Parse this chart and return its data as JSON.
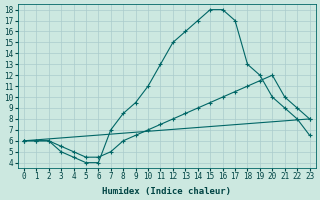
{
  "xlabel": "Humidex (Indice chaleur)",
  "background_color": "#cce8e0",
  "grid_color": "#aacccc",
  "line_color": "#006666",
  "xlim": [
    -0.5,
    23.5
  ],
  "ylim": [
    3.5,
    18.5
  ],
  "xticks": [
    0,
    1,
    2,
    3,
    4,
    5,
    6,
    7,
    8,
    9,
    10,
    11,
    12,
    13,
    14,
    15,
    16,
    17,
    18,
    19,
    20,
    21,
    22,
    23
  ],
  "yticks": [
    4,
    5,
    6,
    7,
    8,
    9,
    10,
    11,
    12,
    13,
    14,
    15,
    16,
    17,
    18
  ],
  "line1_x": [
    0,
    1,
    2,
    3,
    4,
    5,
    6,
    7,
    8,
    9,
    10,
    11,
    12,
    13,
    14,
    15,
    16,
    17,
    18,
    19,
    20,
    21,
    22,
    23
  ],
  "line1_y": [
    6,
    6,
    6,
    5,
    4.5,
    4,
    4,
    7,
    8.5,
    9.5,
    11,
    13,
    15,
    16,
    17,
    18,
    18,
    17,
    13,
    12,
    10,
    9,
    8,
    6.5
  ],
  "line2_x": [
    0,
    1,
    2,
    3,
    4,
    5,
    6,
    7,
    8,
    9,
    10,
    11,
    12,
    13,
    14,
    15,
    16,
    17,
    18,
    19,
    20,
    21,
    22,
    23
  ],
  "line2_y": [
    6,
    6,
    6,
    5.5,
    5,
    4.5,
    4.5,
    5,
    6,
    6.5,
    7,
    7.5,
    8,
    8.5,
    9,
    9.5,
    10,
    10.5,
    11,
    11.5,
    12,
    10,
    9,
    8
  ],
  "line3_x": [
    0,
    23
  ],
  "line3_y": [
    6,
    8
  ]
}
